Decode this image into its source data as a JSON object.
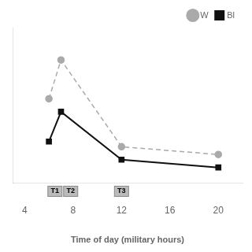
{
  "chart_data": {
    "type": "line",
    "x": [
      6,
      7,
      12,
      20
    ],
    "series": [
      {
        "name": "W",
        "color": "#aaaaaa",
        "values": [
          6.5,
          9.5,
          2.8,
          2.2
        ],
        "marker": "circle",
        "line_style": "dashed"
      },
      {
        "name": "Bl",
        "color": "#111111",
        "values": [
          3.2,
          5.5,
          1.8,
          1.2
        ],
        "marker": "square",
        "line_style": "solid"
      }
    ],
    "xlabel": "Time of day (military hours)",
    "xlim": [
      3,
      22
    ],
    "ylim": [
      0,
      12
    ],
    "xticks": [
      4,
      8,
      12,
      16,
      20
    ],
    "tick_labels": "x",
    "grid": false,
    "legend": "upper right",
    "annotations": [
      {
        "text": "T1",
        "x": 6.5
      },
      {
        "text": "T2",
        "x": 7.8
      },
      {
        "text": "T3",
        "x": 12.0
      }
    ]
  }
}
